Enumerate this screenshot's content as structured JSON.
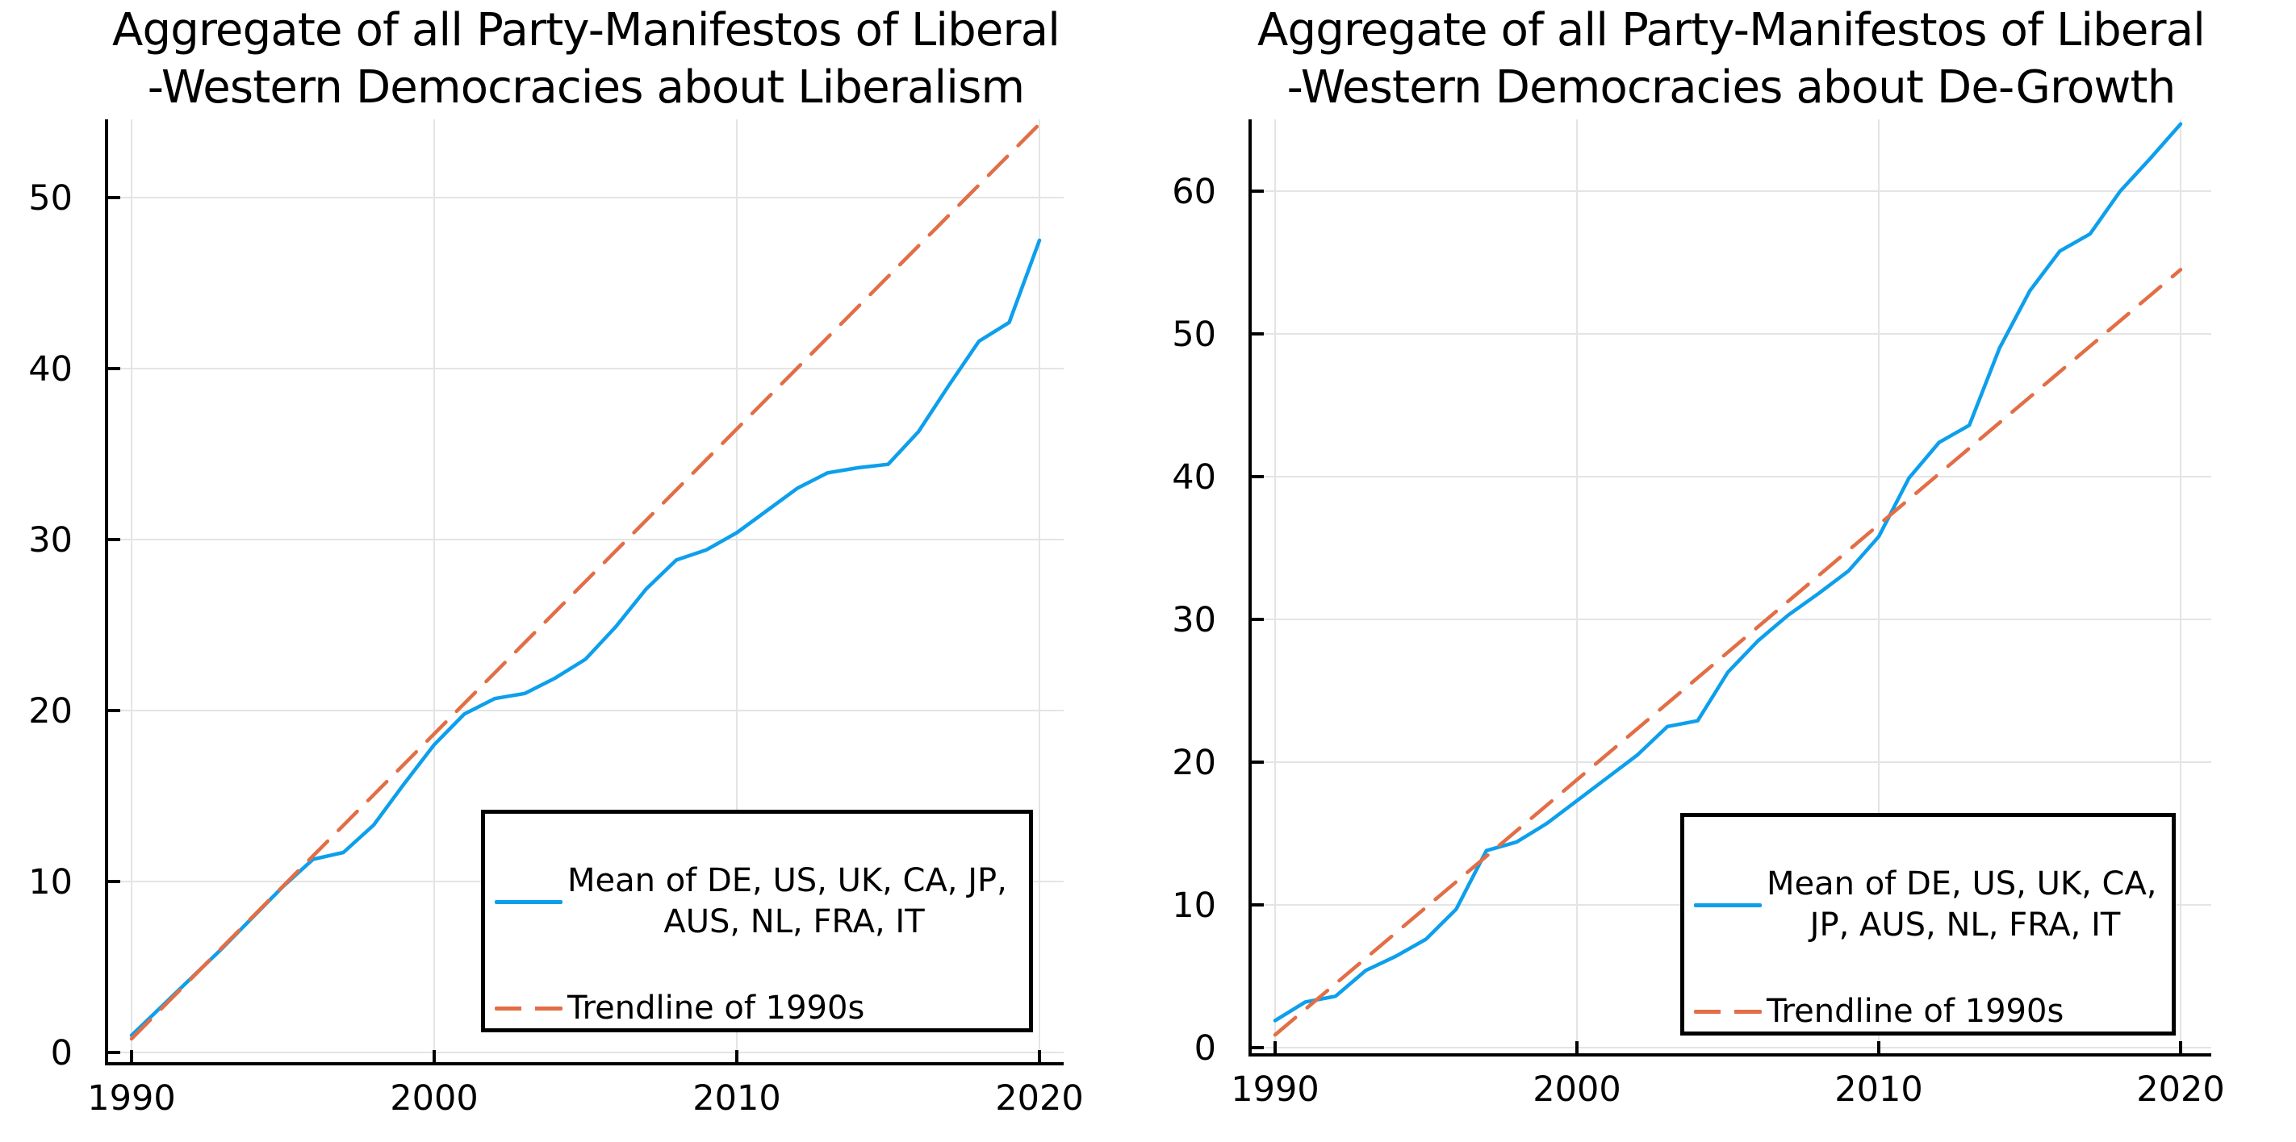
{
  "colors": {
    "series_blue": "#0d9fec",
    "trend_orange": "#e26e46",
    "grid": "#e4e4e4",
    "axis": "#000000",
    "text": "#000000",
    "background": "#ffffff"
  },
  "chart_data": [
    {
      "id": "liberalism",
      "type": "line",
      "title_line1": "Aggregate of all Party-Manifestos of Liberal",
      "title_line2": "-Western Democracies about Liberalism",
      "xlabel": "",
      "ylabel": "",
      "x_ticks": [
        1990,
        2000,
        2010,
        2020
      ],
      "y_ticks": [
        0,
        10,
        20,
        30,
        40,
        50
      ],
      "xlim": [
        1989.2,
        2020.8
      ],
      "ylim": [
        0,
        54.6
      ],
      "grid": true,
      "legend_position": "lower right",
      "legend": {
        "series_line1": "Mean of DE, US, UK, CA, JP,",
        "series_line2": "AUS, NL, FRA, IT",
        "trend_label": "Trendline of 1990s"
      },
      "series": [
        {
          "name": "Mean of DE, US, UK, CA, JP, AUS, NL, FRA, IT",
          "color": "#0d9fec",
          "dash": false,
          "x": [
            1990,
            1991,
            1992,
            1993,
            1994,
            1995,
            1996,
            1997,
            1998,
            1999,
            2000,
            2001,
            2002,
            2003,
            2004,
            2005,
            2006,
            2007,
            2008,
            2009,
            2010,
            2011,
            2012,
            2013,
            2014,
            2015,
            2016,
            2017,
            2018,
            2019,
            2020
          ],
          "values": [
            1.0,
            2.7,
            4.4,
            6.1,
            7.9,
            9.7,
            11.3,
            11.7,
            13.3,
            15.7,
            18.0,
            19.8,
            20.7,
            21.0,
            21.9,
            23.0,
            24.9,
            27.1,
            28.8,
            29.4,
            30.4,
            31.7,
            33.0,
            33.9,
            34.2,
            34.4,
            36.3,
            39.0,
            41.6,
            42.7,
            47.5
          ]
        },
        {
          "name": "Trendline of 1990s",
          "color": "#e26e46",
          "dash": true,
          "x": [
            1990,
            2020
          ],
          "values": [
            0.8,
            54.3
          ]
        }
      ]
    },
    {
      "id": "degrowth",
      "type": "line",
      "title_line1": "Aggregate of all Party-Manifestos of Liberal",
      "title_line2": "-Western Democracies about De-Growth",
      "xlabel": "",
      "ylabel": "",
      "x_ticks": [
        1990,
        2000,
        2010,
        2020
      ],
      "y_ticks": [
        0,
        10,
        20,
        30,
        40,
        50,
        60
      ],
      "xlim": [
        1989.2,
        2021.0
      ],
      "ylim": [
        0,
        65.0
      ],
      "grid": true,
      "legend_position": "lower right",
      "legend": {
        "series_line1": "Mean of DE, US, UK, CA,",
        "series_line2": "JP, AUS, NL, FRA, IT",
        "trend_label": "Trendline of 1990s"
      },
      "series": [
        {
          "name": "Mean of DE, US, UK, CA, JP, AUS, NL, FRA, IT",
          "color": "#0d9fec",
          "dash": false,
          "x": [
            1990,
            1991,
            1992,
            1993,
            1994,
            1995,
            1996,
            1997,
            1998,
            1999,
            2000,
            2001,
            2002,
            2003,
            2004,
            2005,
            2006,
            2007,
            2008,
            2009,
            2010,
            2011,
            2012,
            2013,
            2014,
            2015,
            2016,
            2017,
            2018,
            2019,
            2020
          ],
          "values": [
            1.9,
            3.2,
            3.6,
            5.4,
            6.4,
            7.6,
            9.7,
            13.8,
            14.4,
            15.7,
            17.3,
            18.9,
            20.5,
            22.5,
            22.9,
            26.3,
            28.5,
            30.3,
            31.8,
            33.4,
            35.8,
            39.9,
            42.4,
            43.6,
            49.0,
            53.0,
            55.8,
            57.0,
            60.0,
            62.3,
            64.7
          ]
        },
        {
          "name": "Trendline of 1990s",
          "color": "#e26e46",
          "dash": true,
          "x": [
            1990,
            2020
          ],
          "values": [
            0.9,
            54.5
          ]
        }
      ]
    }
  ]
}
